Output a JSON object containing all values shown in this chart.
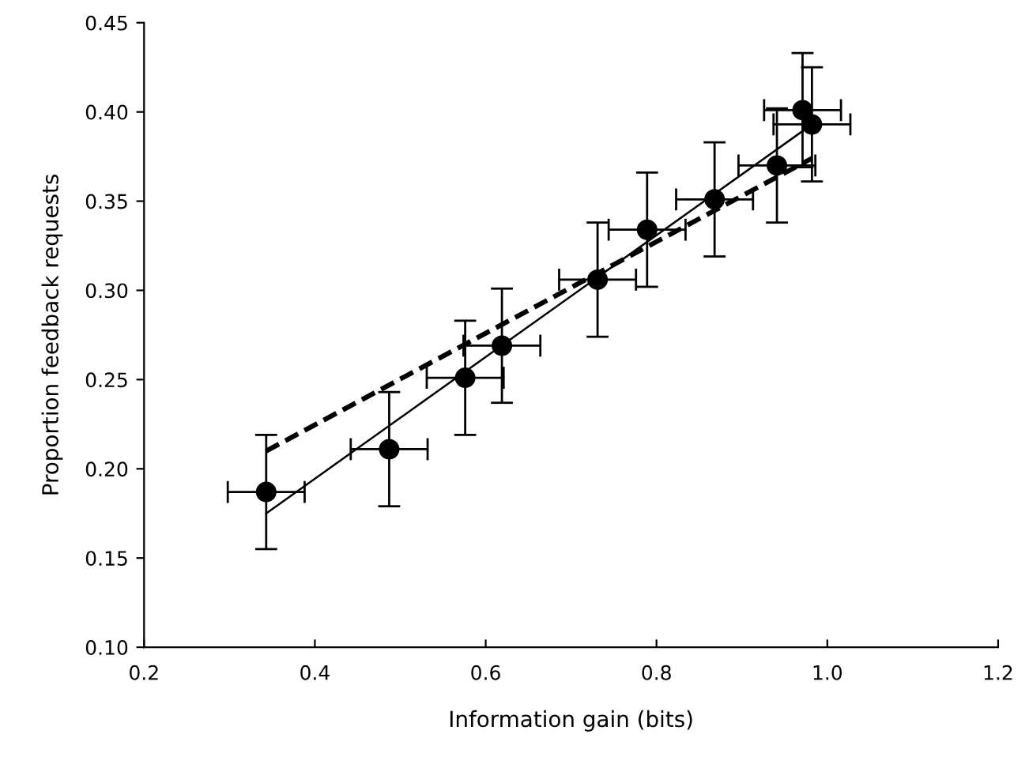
{
  "chart_data": {
    "type": "scatter",
    "xlabel": "Information gain (bits)",
    "ylabel": "Proportion feedback requests",
    "xlim": [
      0.2,
      1.2
    ],
    "xticks": [
      {
        "value": 0.2,
        "label": "0.2"
      },
      {
        "value": 0.4,
        "label": "0.4"
      },
      {
        "value": 0.6,
        "label": "0.6"
      },
      {
        "value": 0.8,
        "label": "0.8"
      },
      {
        "value": 1.0,
        "label": "1.0"
      },
      {
        "value": 1.2,
        "label": "1.2"
      }
    ],
    "ylim": [
      0.1,
      0.45
    ],
    "yticks": [
      {
        "value": 0.1,
        "label": "0.10"
      },
      {
        "value": 0.15,
        "label": "0.15"
      },
      {
        "value": 0.2,
        "label": "0.20"
      },
      {
        "value": 0.25,
        "label": "0.25"
      },
      {
        "value": 0.3,
        "label": "0.30"
      },
      {
        "value": 0.35,
        "label": "0.35"
      },
      {
        "value": 0.4,
        "label": "0.40"
      },
      {
        "value": 0.45,
        "label": "0.45"
      }
    ],
    "grid": false,
    "legend": false,
    "series": [
      {
        "color": "#000000",
        "marker": "circle",
        "x": [
          0.343,
          0.487,
          0.576,
          0.619,
          0.731,
          0.789,
          0.868,
          0.941,
          0.971,
          0.982
        ],
        "values": [
          0.187,
          0.211,
          0.251,
          0.269,
          0.306,
          0.334,
          0.351,
          0.37,
          0.401,
          0.393
        ],
        "errors": [
          0.032,
          0.032,
          0.032,
          0.032,
          0.032,
          0.032,
          0.032,
          0.032,
          0.032,
          0.032
        ],
        "xerrors": [
          0.045,
          0.045,
          0.045,
          0.045,
          0.045,
          0.045,
          0.045,
          0.045,
          0.045,
          0.045
        ]
      },
      {
        "type": "line",
        "color": "#000000",
        "line_style": "solid",
        "marker": "none",
        "x": [
          0.343,
          0.982
        ],
        "values": [
          0.175,
          0.393
        ]
      },
      {
        "type": "line",
        "color": "#000000",
        "line_style": "dashed",
        "marker": "none",
        "x": [
          0.343,
          0.982
        ],
        "values": [
          0.21,
          0.374
        ]
      }
    ]
  }
}
